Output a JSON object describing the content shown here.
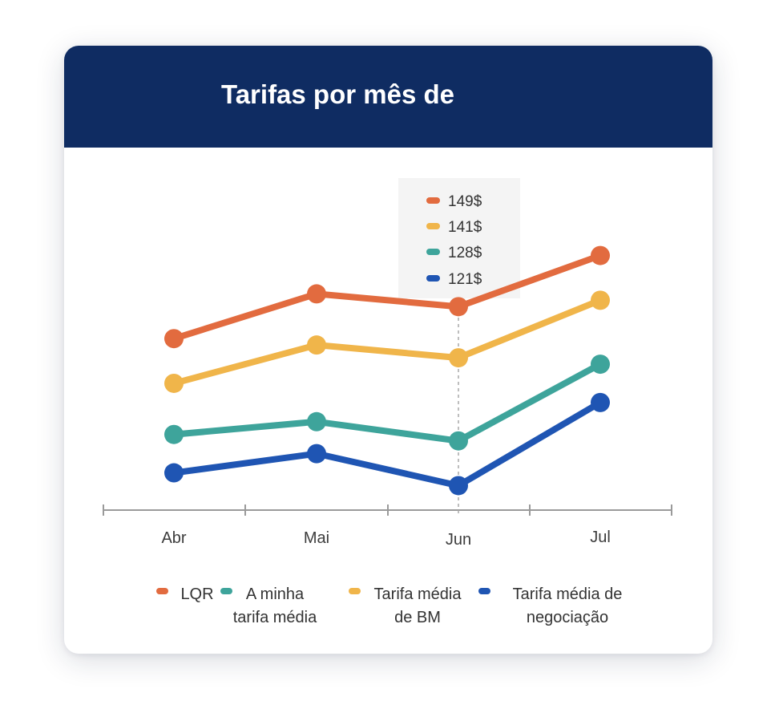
{
  "title": "Tarifas por mês de",
  "colors": {
    "header_bg": "#0f2c62",
    "LQR": "#e26b3f",
    "A minha tarifa média": "#3ea49b",
    "Tarifa média de BM": "#f0b54a",
    "Tarifa média de negociação": "#1f55b3",
    "axis": "#9a9a9a",
    "tooltip_bg": "#f4f4f4"
  },
  "chart_data": {
    "type": "line",
    "categories": [
      "Abr",
      "Mai",
      "Jun",
      "Jul"
    ],
    "series": [
      {
        "name": "LQR",
        "color_key": "LQR",
        "values": [
          144,
          151,
          149,
          157
        ]
      },
      {
        "name": "Tarifa média de BM",
        "color_key": "Tarifa média de BM",
        "values": [
          137,
          143,
          141,
          150
        ]
      },
      {
        "name": "A minha tarifa média",
        "color_key": "A minha tarifa média",
        "values": [
          129,
          131,
          128,
          140
        ]
      },
      {
        "name": "Tarifa média de negociação",
        "color_key": "Tarifa média de negociação",
        "values": [
          123,
          126,
          121,
          134
        ]
      }
    ],
    "ylim": [
      106,
      170
    ],
    "grid": false,
    "highlight_category": "Jun",
    "tooltip": [
      {
        "label": "149$",
        "color_key": "LQR"
      },
      {
        "label": "141$",
        "color_key": "Tarifa média de BM"
      },
      {
        "label": "128$",
        "color_key": "A minha tarifa média"
      },
      {
        "label": "121$",
        "color_key": "Tarifa média de negociação"
      }
    ],
    "legend": [
      {
        "lines": [
          "LQR"
        ],
        "color_key": "LQR"
      },
      {
        "lines": [
          "A minha",
          "tarifa média"
        ],
        "color_key": "A minha tarifa média"
      },
      {
        "lines": [
          "Tarifa média",
          "de BM"
        ],
        "color_key": "Tarifa média de BM"
      },
      {
        "lines": [
          "Tarifa média de",
          "negociação"
        ],
        "color_key": "Tarifa média de negociação"
      }
    ]
  }
}
